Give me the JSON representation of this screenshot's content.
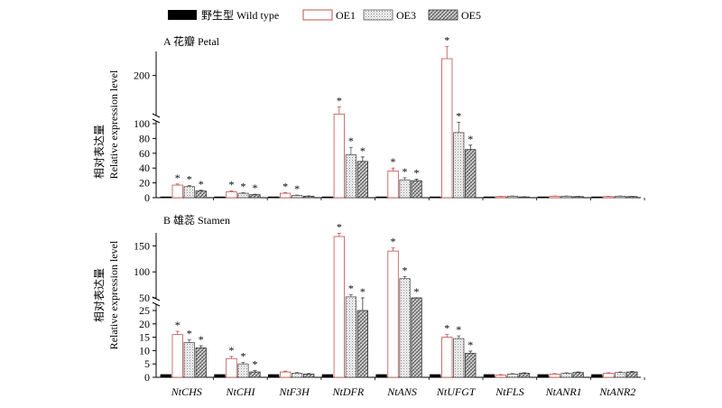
{
  "colors": {
    "wild_type": "#000000",
    "oe1_edge": "#c0504d",
    "oe3_fill": "dotted light gray",
    "oe5_fill": "crosshatch gray"
  },
  "legend": [
    {
      "key": "wt",
      "label": "野生型 Wild type"
    },
    {
      "key": "oe1",
      "label": "OE1"
    },
    {
      "key": "oe3",
      "label": "OE3"
    },
    {
      "key": "oe5",
      "label": "OE5"
    }
  ],
  "chart_data": [
    {
      "type": "bar",
      "panel_label": "A  花瓣 Petal",
      "ylabel_cn": "相对表达量",
      "ylabel_en": "Relative expression level",
      "axis_break": {
        "lower_max": 100,
        "upper_min": 100
      },
      "lower_ticks": [
        "0",
        "20",
        "40",
        "60",
        "80",
        "100"
      ],
      "upper_ticks": [
        "100",
        "200"
      ],
      "categories": [
        "NtCHS",
        "NtCHI",
        "NtF3H",
        "NtDFR",
        "NtANS",
        "NtUFGT",
        "NtFLS",
        "NtANR1",
        "NtANR2"
      ],
      "series": [
        {
          "name": "野生型 Wild type",
          "key": "wt",
          "values": [
            1,
            1,
            1,
            1,
            1,
            1,
            1,
            1,
            1
          ]
        },
        {
          "name": "OE1",
          "key": "oe1",
          "values": [
            17,
            8,
            6,
            120,
            36,
            235,
            1.5,
            2,
            1.5
          ]
        },
        {
          "name": "OE3",
          "key": "oe3",
          "values": [
            15,
            6,
            3,
            58,
            24,
            88,
            2,
            2,
            2
          ]
        },
        {
          "name": "OE5",
          "key": "oe5",
          "values": [
            9,
            4,
            2,
            49,
            23,
            65,
            1,
            1.5,
            1.5
          ]
        }
      ],
      "errors": [
        [
          0,
          0,
          0,
          0,
          0,
          0,
          0,
          0,
          0
        ],
        [
          1.5,
          1,
          0.8,
          15,
          4,
          25,
          0.3,
          0.3,
          0.3
        ],
        [
          1.5,
          0.8,
          0.5,
          10,
          3,
          15,
          0.3,
          0.3,
          0.3
        ],
        [
          1,
          0.6,
          0.4,
          6,
          2,
          6,
          0.2,
          0.2,
          0.2
        ]
      ],
      "significance": [
        [
          false,
          false,
          false,
          false,
          false,
          false,
          false,
          false,
          false
        ],
        [
          true,
          true,
          true,
          true,
          true,
          true,
          false,
          false,
          false
        ],
        [
          true,
          true,
          true,
          true,
          true,
          true,
          false,
          false,
          false
        ],
        [
          true,
          true,
          false,
          true,
          true,
          true,
          false,
          false,
          false
        ]
      ],
      "star_symbol": "*"
    },
    {
      "type": "bar",
      "panel_label": "B  雄蕊 Stamen",
      "ylabel_cn": "相对表达量",
      "ylabel_en": "Relative expression level",
      "axis_break": {
        "lower_max": 25,
        "upper_min": 50
      },
      "lower_ticks": [
        "0",
        "5",
        "10",
        "15",
        "20",
        "25"
      ],
      "upper_ticks": [
        "50",
        "100",
        "150"
      ],
      "categories": [
        "NtCHS",
        "NtCHI",
        "NtF3H",
        "NtDFR",
        "NtANS",
        "NtUFGT",
        "NtFLS",
        "NtANR1",
        "NtANR2"
      ],
      "series": [
        {
          "name": "野生型 Wild type",
          "key": "wt",
          "values": [
            1,
            1,
            1,
            1,
            1,
            1,
            1,
            1,
            1
          ]
        },
        {
          "name": "OE1",
          "key": "oe1",
          "values": [
            16,
            7,
            2,
            168,
            140,
            15,
            0.8,
            1.2,
            1.5
          ]
        },
        {
          "name": "OE3",
          "key": "oe3",
          "values": [
            13,
            5,
            1.5,
            52,
            87,
            14.5,
            1.2,
            1.5,
            1.8
          ]
        },
        {
          "name": "OE5",
          "key": "oe5",
          "values": [
            11,
            2,
            1.2,
            25,
            47,
            9,
            1.5,
            1.8,
            2
          ]
        }
      ],
      "errors": [
        [
          0,
          0,
          0,
          0,
          0,
          0,
          0,
          0,
          0
        ],
        [
          1.2,
          0.8,
          0.3,
          6,
          6,
          1,
          0.2,
          0.2,
          0.2
        ],
        [
          1,
          0.6,
          0.3,
          4,
          4,
          1,
          0.2,
          0.2,
          0.2
        ],
        [
          0.8,
          0.5,
          0.2,
          2,
          3,
          0.8,
          0.2,
          0.2,
          0.2
        ]
      ],
      "significance": [
        [
          false,
          false,
          false,
          false,
          false,
          false,
          false,
          false,
          false
        ],
        [
          true,
          true,
          false,
          true,
          true,
          true,
          false,
          false,
          false
        ],
        [
          true,
          true,
          false,
          true,
          true,
          true,
          false,
          false,
          false
        ],
        [
          true,
          true,
          false,
          true,
          true,
          true,
          false,
          false,
          false
        ]
      ],
      "star_symbol": "*"
    }
  ]
}
